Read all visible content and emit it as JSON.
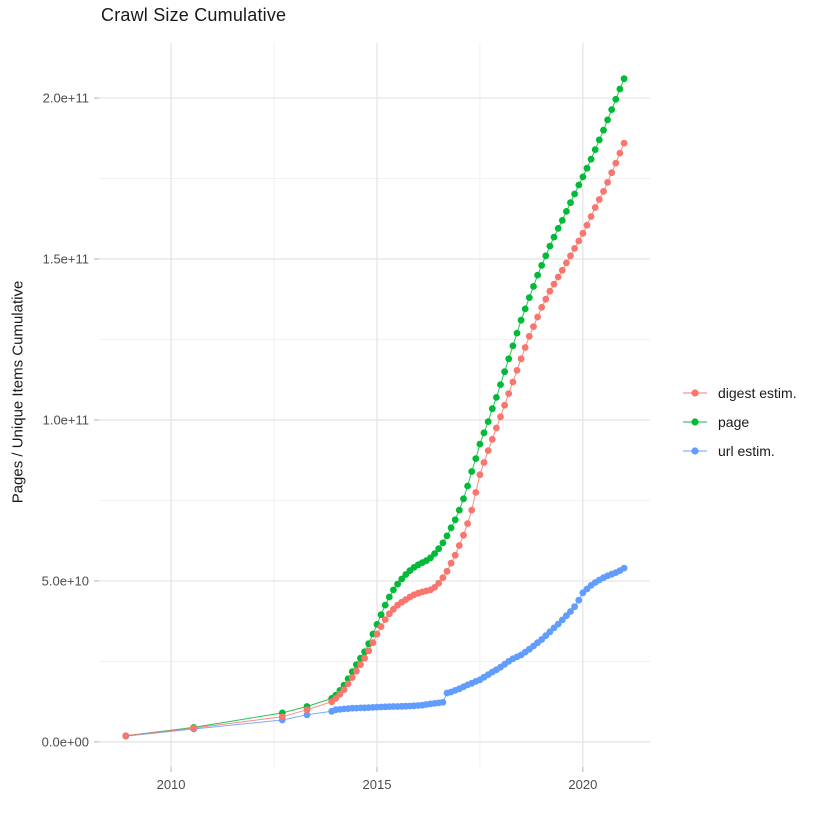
{
  "title": "Crawl Size Cumulative",
  "y_axis_title": "Pages / Unique Items Cumulative",
  "legend": {
    "items": [
      {
        "label": "digest estim.",
        "color": "#F8766D"
      },
      {
        "label": "page",
        "color": "#00BA38"
      },
      {
        "label": "url estim.",
        "color": "#619CFF"
      }
    ]
  },
  "colors": {
    "background": "#ffffff",
    "grid_major": "#e3e3e3",
    "grid_minor": "#f1f1f1",
    "axis_tick": "#b3b3b3",
    "tick_label": "#4d4d4d",
    "text": "#1a1a1a"
  },
  "chart_data": {
    "type": "scatter",
    "title": "Crawl Size Cumulative",
    "xlabel": "",
    "ylabel": "Pages / Unique Items Cumulative",
    "y_unit": "billions (1e9)",
    "xlim": [
      2008.25,
      2021.63
    ],
    "ylim": [
      -7.8,
      217.1
    ],
    "x_ticks": [
      2010,
      2015,
      2020
    ],
    "x_tick_labels": [
      "2010",
      "2015",
      "2020"
    ],
    "x_minor_ticks": [
      2012.5,
      2017.5
    ],
    "y_ticks": [
      0,
      50,
      100,
      150,
      200
    ],
    "y_tick_labels": [
      "0.0e+00",
      "5.0e+10",
      "1.0e+11",
      "1.5e+11",
      "2.0e+11"
    ],
    "y_minor_ticks": [
      25,
      75,
      125,
      175
    ],
    "grid": true,
    "legend_position": "right",
    "marker_radius": 3.4,
    "series": [
      {
        "name": "digest estim.",
        "color": "#F8766D",
        "points": [
          [
            2008.9,
            1.9
          ],
          [
            2010.55,
            4.3
          ],
          [
            2012.7,
            7.8
          ],
          [
            2013.3,
            10
          ],
          [
            2013.9,
            12.5
          ],
          [
            2014,
            13.5
          ],
          [
            2014.1,
            14.8
          ],
          [
            2014.2,
            16.2
          ],
          [
            2014.3,
            18
          ],
          [
            2014.4,
            20
          ],
          [
            2014.5,
            22
          ],
          [
            2014.6,
            24
          ],
          [
            2014.7,
            26
          ],
          [
            2014.8,
            28.3
          ],
          [
            2014.9,
            30.8
          ],
          [
            2015,
            33.5
          ],
          [
            2015.1,
            35.8
          ],
          [
            2015.2,
            38
          ],
          [
            2015.3,
            39.8
          ],
          [
            2015.4,
            41.2
          ],
          [
            2015.5,
            42.5
          ],
          [
            2015.6,
            43.4
          ],
          [
            2015.7,
            44.2
          ],
          [
            2015.8,
            45
          ],
          [
            2015.9,
            45.7
          ],
          [
            2016,
            46.2
          ],
          [
            2016.1,
            46.6
          ],
          [
            2016.2,
            46.9
          ],
          [
            2016.3,
            47.2
          ],
          [
            2016.4,
            48
          ],
          [
            2016.5,
            49.3
          ],
          [
            2016.6,
            51
          ],
          [
            2016.7,
            53
          ],
          [
            2016.8,
            55.5
          ],
          [
            2016.9,
            58
          ],
          [
            2017,
            61
          ],
          [
            2017.1,
            64.2
          ],
          [
            2017.2,
            67.8
          ],
          [
            2017.3,
            72
          ],
          [
            2017.4,
            77.5
          ],
          [
            2017.5,
            83
          ],
          [
            2017.6,
            86.8
          ],
          [
            2017.7,
            90.5
          ],
          [
            2017.8,
            94
          ],
          [
            2017.9,
            97.5
          ],
          [
            2018,
            101
          ],
          [
            2018.1,
            104.6
          ],
          [
            2018.2,
            108.2
          ],
          [
            2018.3,
            111.8
          ],
          [
            2018.4,
            115.4
          ],
          [
            2018.5,
            119
          ],
          [
            2018.6,
            122.5
          ],
          [
            2018.7,
            126
          ],
          [
            2018.8,
            129
          ],
          [
            2018.9,
            132
          ],
          [
            2019,
            135
          ],
          [
            2019.1,
            137.5
          ],
          [
            2019.2,
            140
          ],
          [
            2019.3,
            142.2
          ],
          [
            2019.4,
            144.4
          ],
          [
            2019.5,
            146.5
          ],
          [
            2019.6,
            148.8
          ],
          [
            2019.7,
            151
          ],
          [
            2019.8,
            153.3
          ],
          [
            2019.9,
            155.6
          ],
          [
            2020,
            158
          ],
          [
            2020.1,
            160.5
          ],
          [
            2020.2,
            163.2
          ],
          [
            2020.3,
            166
          ],
          [
            2020.4,
            168.5
          ],
          [
            2020.5,
            171
          ],
          [
            2020.6,
            173.8
          ],
          [
            2020.7,
            176.8
          ],
          [
            2020.8,
            179.8
          ],
          [
            2020.9,
            182.9
          ],
          [
            2021,
            186
          ]
        ]
      },
      {
        "name": "page",
        "color": "#00BA38",
        "points": [
          [
            2008.9,
            1.9
          ],
          [
            2010.55,
            4.5
          ],
          [
            2012.7,
            9
          ],
          [
            2013.3,
            11
          ],
          [
            2013.9,
            13.5
          ],
          [
            2014,
            14.5
          ],
          [
            2014.1,
            16
          ],
          [
            2014.2,
            17.6
          ],
          [
            2014.3,
            19.6
          ],
          [
            2014.4,
            21.8
          ],
          [
            2014.5,
            24
          ],
          [
            2014.6,
            26
          ],
          [
            2014.7,
            28
          ],
          [
            2014.8,
            30.5
          ],
          [
            2014.9,
            33.5
          ],
          [
            2015,
            36.5
          ],
          [
            2015.1,
            39.5
          ],
          [
            2015.2,
            42.5
          ],
          [
            2015.3,
            45
          ],
          [
            2015.4,
            47.2
          ],
          [
            2015.5,
            49
          ],
          [
            2015.6,
            50.6
          ],
          [
            2015.7,
            52
          ],
          [
            2015.8,
            53.2
          ],
          [
            2015.9,
            54.2
          ],
          [
            2016,
            55
          ],
          [
            2016.1,
            55.7
          ],
          [
            2016.2,
            56.3
          ],
          [
            2016.3,
            57.2
          ],
          [
            2016.4,
            58.5
          ],
          [
            2016.5,
            60
          ],
          [
            2016.6,
            61.8
          ],
          [
            2016.7,
            64
          ],
          [
            2016.8,
            66.5
          ],
          [
            2016.9,
            69
          ],
          [
            2017,
            72
          ],
          [
            2017.1,
            75.5
          ],
          [
            2017.2,
            79.5
          ],
          [
            2017.3,
            84
          ],
          [
            2017.4,
            88
          ],
          [
            2017.5,
            92.5
          ],
          [
            2017.6,
            96
          ],
          [
            2017.7,
            99.5
          ],
          [
            2017.8,
            103.5
          ],
          [
            2017.9,
            107
          ],
          [
            2018,
            111
          ],
          [
            2018.1,
            115
          ],
          [
            2018.2,
            119
          ],
          [
            2018.3,
            123
          ],
          [
            2018.4,
            127
          ],
          [
            2018.5,
            131
          ],
          [
            2018.6,
            134.5
          ],
          [
            2018.7,
            138
          ],
          [
            2018.8,
            141.5
          ],
          [
            2018.9,
            145
          ],
          [
            2019,
            148
          ],
          [
            2019.1,
            151
          ],
          [
            2019.2,
            154
          ],
          [
            2019.3,
            156.8
          ],
          [
            2019.4,
            159.5
          ],
          [
            2019.5,
            162
          ],
          [
            2019.6,
            164.8
          ],
          [
            2019.7,
            167.5
          ],
          [
            2019.8,
            170.2
          ],
          [
            2019.9,
            173
          ],
          [
            2020,
            175.5
          ],
          [
            2020.1,
            178.2
          ],
          [
            2020.2,
            181
          ],
          [
            2020.3,
            184
          ],
          [
            2020.4,
            187
          ],
          [
            2020.5,
            190
          ],
          [
            2020.6,
            193.2
          ],
          [
            2020.7,
            196.4
          ],
          [
            2020.8,
            199.6
          ],
          [
            2020.9,
            202.8
          ],
          [
            2021,
            206
          ]
        ]
      },
      {
        "name": "url estim.",
        "color": "#619CFF",
        "points": [
          [
            2008.9,
            1.8
          ],
          [
            2010.55,
            4
          ],
          [
            2012.7,
            6.8
          ],
          [
            2013.3,
            8.4
          ],
          [
            2013.9,
            9.5
          ],
          [
            2014,
            10
          ],
          [
            2014.1,
            10.1
          ],
          [
            2014.2,
            10.25
          ],
          [
            2014.3,
            10.35
          ],
          [
            2014.4,
            10.45
          ],
          [
            2014.5,
            10.5
          ],
          [
            2014.6,
            10.55
          ],
          [
            2014.7,
            10.6
          ],
          [
            2014.8,
            10.65
          ],
          [
            2014.9,
            10.72
          ],
          [
            2015,
            10.8
          ],
          [
            2015.1,
            10.85
          ],
          [
            2015.2,
            10.9
          ],
          [
            2015.3,
            10.95
          ],
          [
            2015.4,
            11
          ],
          [
            2015.5,
            11
          ],
          [
            2015.6,
            11.05
          ],
          [
            2015.7,
            11.1
          ],
          [
            2015.8,
            11.15
          ],
          [
            2015.9,
            11.2
          ],
          [
            2016,
            11.3
          ],
          [
            2016.1,
            11.4
          ],
          [
            2016.2,
            11.6
          ],
          [
            2016.3,
            11.8
          ],
          [
            2016.4,
            11.95
          ],
          [
            2016.5,
            12.1
          ],
          [
            2016.6,
            12.3
          ],
          [
            2016.7,
            15.2
          ],
          [
            2016.8,
            15.5
          ],
          [
            2016.9,
            16
          ],
          [
            2017,
            16.5
          ],
          [
            2017.1,
            17.1
          ],
          [
            2017.2,
            17.7
          ],
          [
            2017.3,
            18.2
          ],
          [
            2017.4,
            18.8
          ],
          [
            2017.5,
            19.3
          ],
          [
            2017.6,
            20.1
          ],
          [
            2017.7,
            20.9
          ],
          [
            2017.8,
            21.7
          ],
          [
            2017.9,
            22.4
          ],
          [
            2018,
            23.2
          ],
          [
            2018.1,
            24.1
          ],
          [
            2018.2,
            25
          ],
          [
            2018.3,
            25.8
          ],
          [
            2018.4,
            26.4
          ],
          [
            2018.5,
            27
          ],
          [
            2018.6,
            27.9
          ],
          [
            2018.7,
            28.8
          ],
          [
            2018.8,
            29.8
          ],
          [
            2018.9,
            30.8
          ],
          [
            2019,
            31.8
          ],
          [
            2019.1,
            33
          ],
          [
            2019.2,
            34.2
          ],
          [
            2019.3,
            35.4
          ],
          [
            2019.4,
            36.6
          ],
          [
            2019.5,
            37.9
          ],
          [
            2019.6,
            39.2
          ],
          [
            2019.7,
            40.5
          ],
          [
            2019.8,
            42
          ],
          [
            2019.9,
            44
          ],
          [
            2020,
            46.3
          ],
          [
            2020.1,
            47.5
          ],
          [
            2020.2,
            48.6
          ],
          [
            2020.3,
            49.5
          ],
          [
            2020.4,
            50.3
          ],
          [
            2020.5,
            51
          ],
          [
            2020.6,
            51.6
          ],
          [
            2020.7,
            52.1
          ],
          [
            2020.8,
            52.6
          ],
          [
            2020.9,
            53.2
          ],
          [
            2021,
            54
          ]
        ]
      }
    ]
  }
}
